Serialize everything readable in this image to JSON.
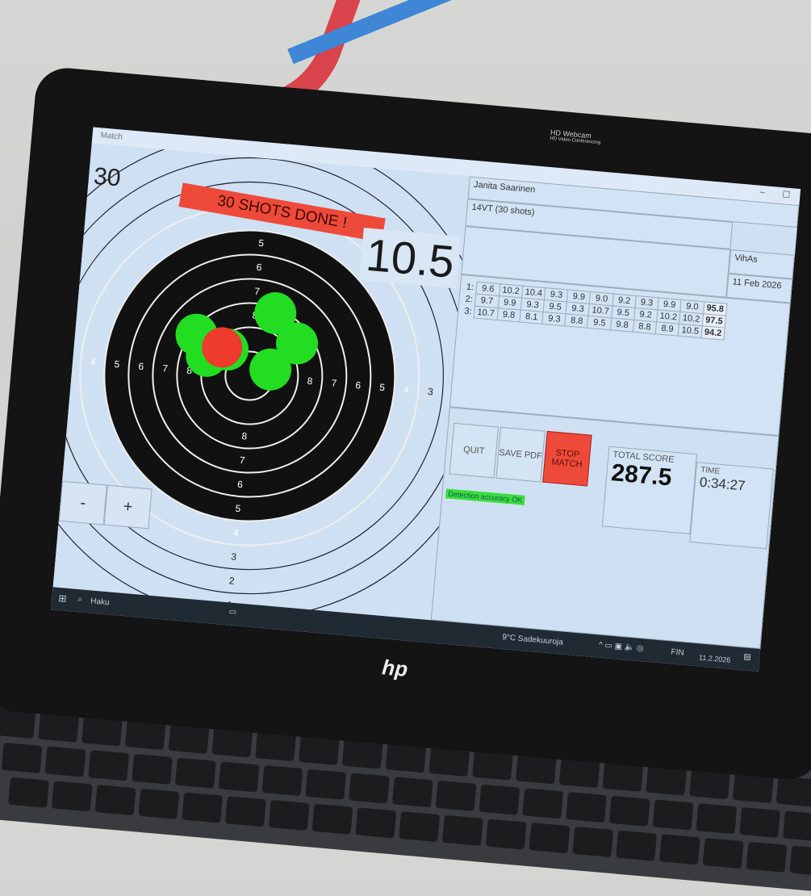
{
  "window": {
    "title": "Match"
  },
  "target": {
    "shot_count": "30",
    "banner": "30 SHOTS DONE !",
    "last_shot": "10.5",
    "zoom_minus": "-",
    "zoom_plus": "+",
    "ring_labels": [
      "1",
      "2",
      "3",
      "4",
      "5",
      "6",
      "7",
      "8"
    ],
    "shot_color": "#22dd22",
    "last_shot_color": "#ee3b2b"
  },
  "info": {
    "shooter": "Janita Saarinen",
    "discipline": "14VT (30 shots)",
    "club": "VihAs",
    "date": "11 Feb 2026"
  },
  "series": [
    {
      "label": "1:",
      "shots": [
        "9.6",
        "10.2",
        "10.4",
        "9.3",
        "9.9",
        "9.0",
        "9.2",
        "9.3",
        "9.9",
        "9.0"
      ],
      "total": "95.8"
    },
    {
      "label": "2:",
      "shots": [
        "9.7",
        "9.9",
        "9.3",
        "9.5",
        "9.3",
        "10.7",
        "9.5",
        "9.2",
        "10.2",
        "10.2"
      ],
      "total": "97.5"
    },
    {
      "label": "3:",
      "shots": [
        "10.7",
        "9.8",
        "8.1",
        "9.3",
        "8.8",
        "9.5",
        "9.8",
        "8.8",
        "8.9",
        "10.5"
      ],
      "total": "94.2"
    }
  ],
  "controls": {
    "quit": "QUIT",
    "save_pdf": "SAVE PDF",
    "stop_match": "STOP MATCH"
  },
  "status": {
    "detection": "Detection accuracy OK"
  },
  "score": {
    "total_label": "TOTAL SCORE",
    "total": "287.5",
    "time_label": "TIME",
    "time": "0:34:27"
  },
  "taskbar": {
    "search": "Haku",
    "weather": "9°C Sadekuuroja",
    "language": "FIN",
    "date": "11.2.2026"
  },
  "webcam": {
    "label": "HD Webcam",
    "sub": "HD Video Conferencing"
  },
  "brand": "hp"
}
